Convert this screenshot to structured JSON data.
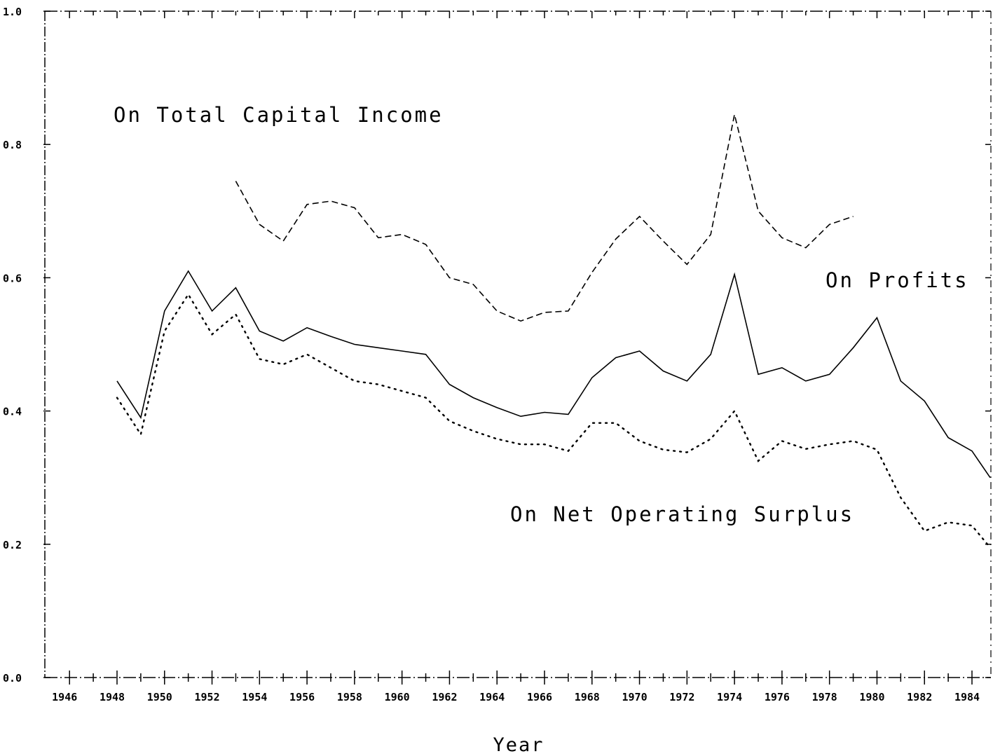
{
  "chart_data": {
    "type": "line",
    "title": "",
    "xlabel": "Year",
    "ylabel": "",
    "xlim": [
      1946,
      1985
    ],
    "ylim": [
      0,
      1.0
    ],
    "x_ticks": [
      1946,
      1948,
      1950,
      1952,
      1954,
      1956,
      1958,
      1960,
      1962,
      1964,
      1966,
      1968,
      1970,
      1972,
      1974,
      1976,
      1978,
      1980,
      1982,
      1984
    ],
    "x_tick_labels": [
      "1946",
      "1948",
      "1950",
      "1952",
      "1954",
      "1956",
      "1958",
      "1960",
      "1962",
      "1964",
      "1966",
      "1968",
      "1970",
      "1972",
      "1974",
      "1976",
      "1978",
      "1980",
      "1982",
      "1984"
    ],
    "y_ticks": [
      0,
      0.2,
      0.4,
      0.6,
      0.8,
      1.0
    ],
    "y_tick_labels": [
      "0.0",
      "0.2",
      "0.4",
      "0.6",
      "0.8",
      "1.0"
    ],
    "grid": false,
    "series": [
      {
        "name": "On Total Capital Income",
        "style": "dashed",
        "x": [
          1953,
          1954,
          1955,
          1956,
          1957,
          1958,
          1959,
          1960,
          1961,
          1962,
          1963,
          1964,
          1965,
          1966,
          1967,
          1968,
          1969,
          1970,
          1971,
          1972,
          1973,
          1974,
          1975,
          1976,
          1977,
          1978,
          1979
        ],
        "values": [
          0.745,
          0.68,
          0.655,
          0.71,
          0.715,
          0.705,
          0.66,
          0.665,
          0.65,
          0.6,
          0.59,
          0.55,
          0.535,
          0.548,
          0.55,
          0.608,
          0.658,
          0.692,
          0.655,
          0.62,
          0.665,
          0.845,
          0.7,
          0.66,
          0.645,
          0.68,
          0.692
        ]
      },
      {
        "name": "On Profits",
        "style": "solid",
        "x": [
          1948,
          1949,
          1950,
          1951,
          1952,
          1953,
          1954,
          1955,
          1956,
          1957,
          1958,
          1959,
          1960,
          1961,
          1962,
          1963,
          1964,
          1965,
          1966,
          1967,
          1968,
          1969,
          1970,
          1971,
          1972,
          1973,
          1974,
          1975,
          1976,
          1977,
          1978,
          1979,
          1980,
          1981,
          1982,
          1983,
          1984,
          1985
        ],
        "values": [
          0.445,
          0.39,
          0.55,
          0.61,
          0.55,
          0.585,
          0.52,
          0.505,
          0.525,
          0.512,
          0.5,
          0.495,
          0.49,
          0.485,
          0.44,
          0.42,
          0.405,
          0.392,
          0.398,
          0.395,
          0.45,
          0.48,
          0.49,
          0.46,
          0.445,
          0.485,
          0.605,
          0.455,
          0.465,
          0.445,
          0.455,
          0.495,
          0.54,
          0.445,
          0.415,
          0.36,
          0.34,
          0.3
        ]
      },
      {
        "name": "On Net Operating Surplus",
        "style": "dotted",
        "x": [
          1948,
          1949,
          1950,
          1951,
          1952,
          1953,
          1954,
          1955,
          1956,
          1957,
          1958,
          1959,
          1960,
          1961,
          1962,
          1963,
          1964,
          1965,
          1966,
          1967,
          1968,
          1969,
          1970,
          1971,
          1972,
          1973,
          1974,
          1975,
          1976,
          1977,
          1978,
          1979,
          1980,
          1981,
          1982,
          1983,
          1984,
          1985
        ],
        "values": [
          0.42,
          0.365,
          0.52,
          0.575,
          0.515,
          0.545,
          0.478,
          0.47,
          0.485,
          0.465,
          0.445,
          0.44,
          0.43,
          0.42,
          0.385,
          0.37,
          0.358,
          0.35,
          0.35,
          0.34,
          0.382,
          0.382,
          0.355,
          0.342,
          0.338,
          0.358,
          0.4,
          0.325,
          0.355,
          0.343,
          0.35,
          0.355,
          0.342,
          0.27,
          0.22,
          0.233,
          0.228,
          0.195
        ]
      }
    ],
    "annotations": {
      "total_capital_income": "On Total Capital Income",
      "profits": "On Profits",
      "net_operating_surplus": "On Net Operating Surplus"
    }
  }
}
